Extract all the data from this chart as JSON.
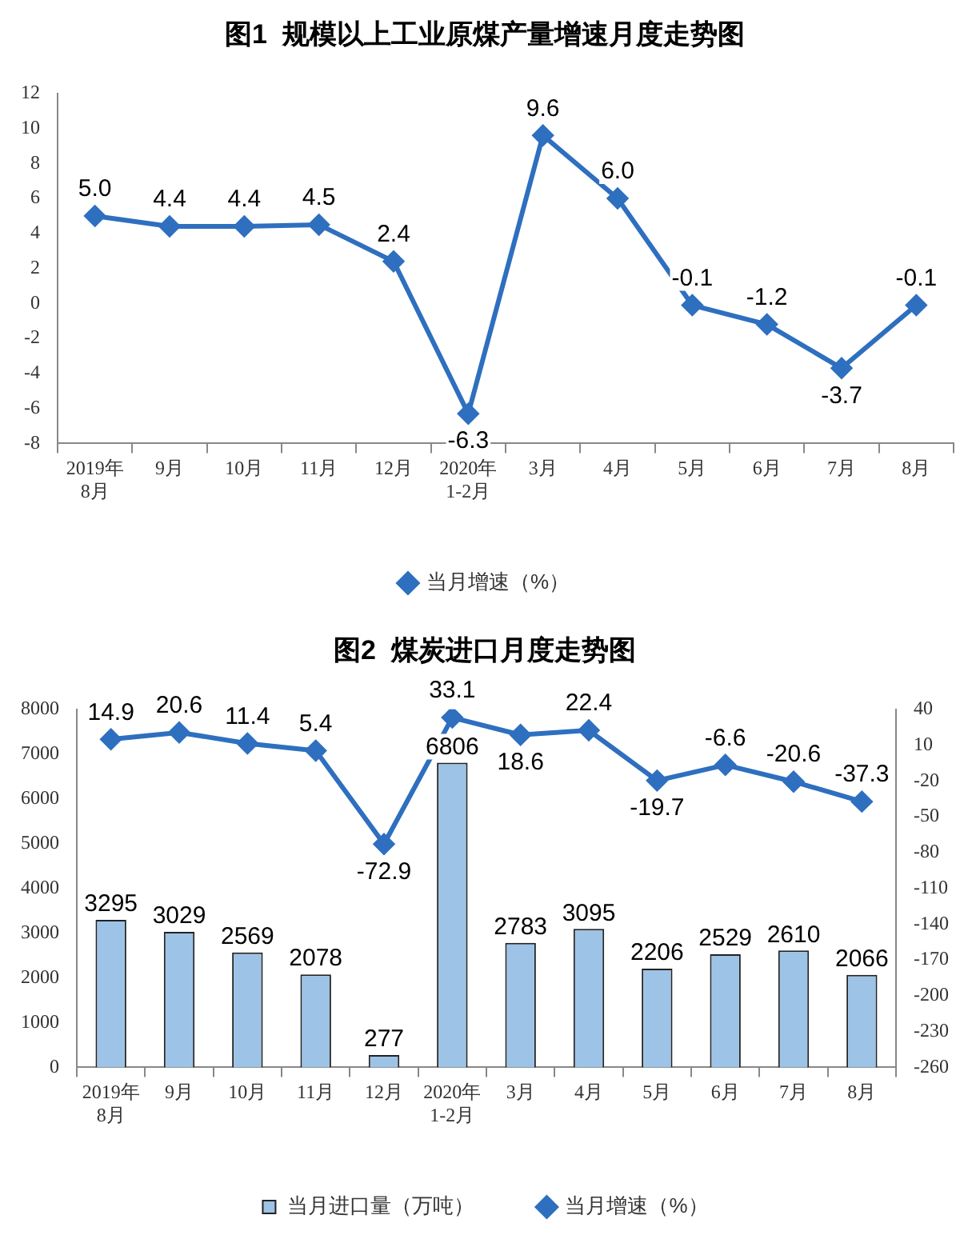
{
  "chart_data": [
    {
      "type": "line",
      "title": "图1  规模以上工业原煤产量增速月度走势图",
      "categories": [
        "2019年\n8月",
        "9月",
        "10月",
        "11月",
        "12月",
        "2020年\n1-2月",
        "3月",
        "4月",
        "5月",
        "6月",
        "7月",
        "8月"
      ],
      "series": [
        {
          "name": "当月增速（%）",
          "color": "#2e6fbf",
          "values": [
            5.0,
            4.4,
            4.4,
            4.5,
            2.4,
            -6.3,
            9.6,
            6.0,
            -0.1,
            -1.2,
            -3.7,
            -0.1
          ],
          "value_labels": [
            "5.0",
            "4.4",
            "4.4",
            "4.5",
            "2.4",
            "-6.3",
            "9.6",
            "6.0",
            "-0.1",
            "-1.2",
            "-3.7",
            "-0.1"
          ]
        }
      ],
      "ylim": [
        -8,
        12
      ],
      "yticks": [
        -8,
        -6,
        -4,
        -2,
        0,
        2,
        4,
        6,
        8,
        10,
        12
      ],
      "grid": false,
      "legend": "bottom",
      "marker": "diamond"
    },
    {
      "type": "bar",
      "title": "图2  煤炭进口月度走势图",
      "categories": [
        "2019年\n8月",
        "9月",
        "10月",
        "11月",
        "12月",
        "2020年\n1-2月",
        "3月",
        "4月",
        "5月",
        "6月",
        "7月",
        "8月"
      ],
      "series": [
        {
          "name": "当月进口量（万吨）",
          "type": "bar",
          "color": "#9dc3e6",
          "values": [
            3295,
            3029,
            2569,
            2078,
            277,
            6806,
            2783,
            3095,
            2206,
            2529,
            2610,
            2066
          ]
        },
        {
          "name": "当月增速（%）",
          "type": "line",
          "axis": "y2",
          "color": "#2e6fbf",
          "values": [
            14.9,
            20.6,
            11.4,
            5.4,
            -72.9,
            33.1,
            18.6,
            22.4,
            -19.7,
            -6.6,
            -20.6,
            -37.3
          ]
        }
      ],
      "ylim": [
        0,
        8000
      ],
      "yticks": [
        0,
        1000,
        2000,
        3000,
        4000,
        5000,
        6000,
        7000,
        8000
      ],
      "y2lim": [
        -260,
        40
      ],
      "y2ticks": [
        -260,
        -230,
        -200,
        -170,
        -140,
        -110,
        -80,
        -50,
        -20,
        10,
        40
      ],
      "data_labels": true,
      "grid": false,
      "legend": "bottom",
      "marker": "diamond"
    }
  ]
}
